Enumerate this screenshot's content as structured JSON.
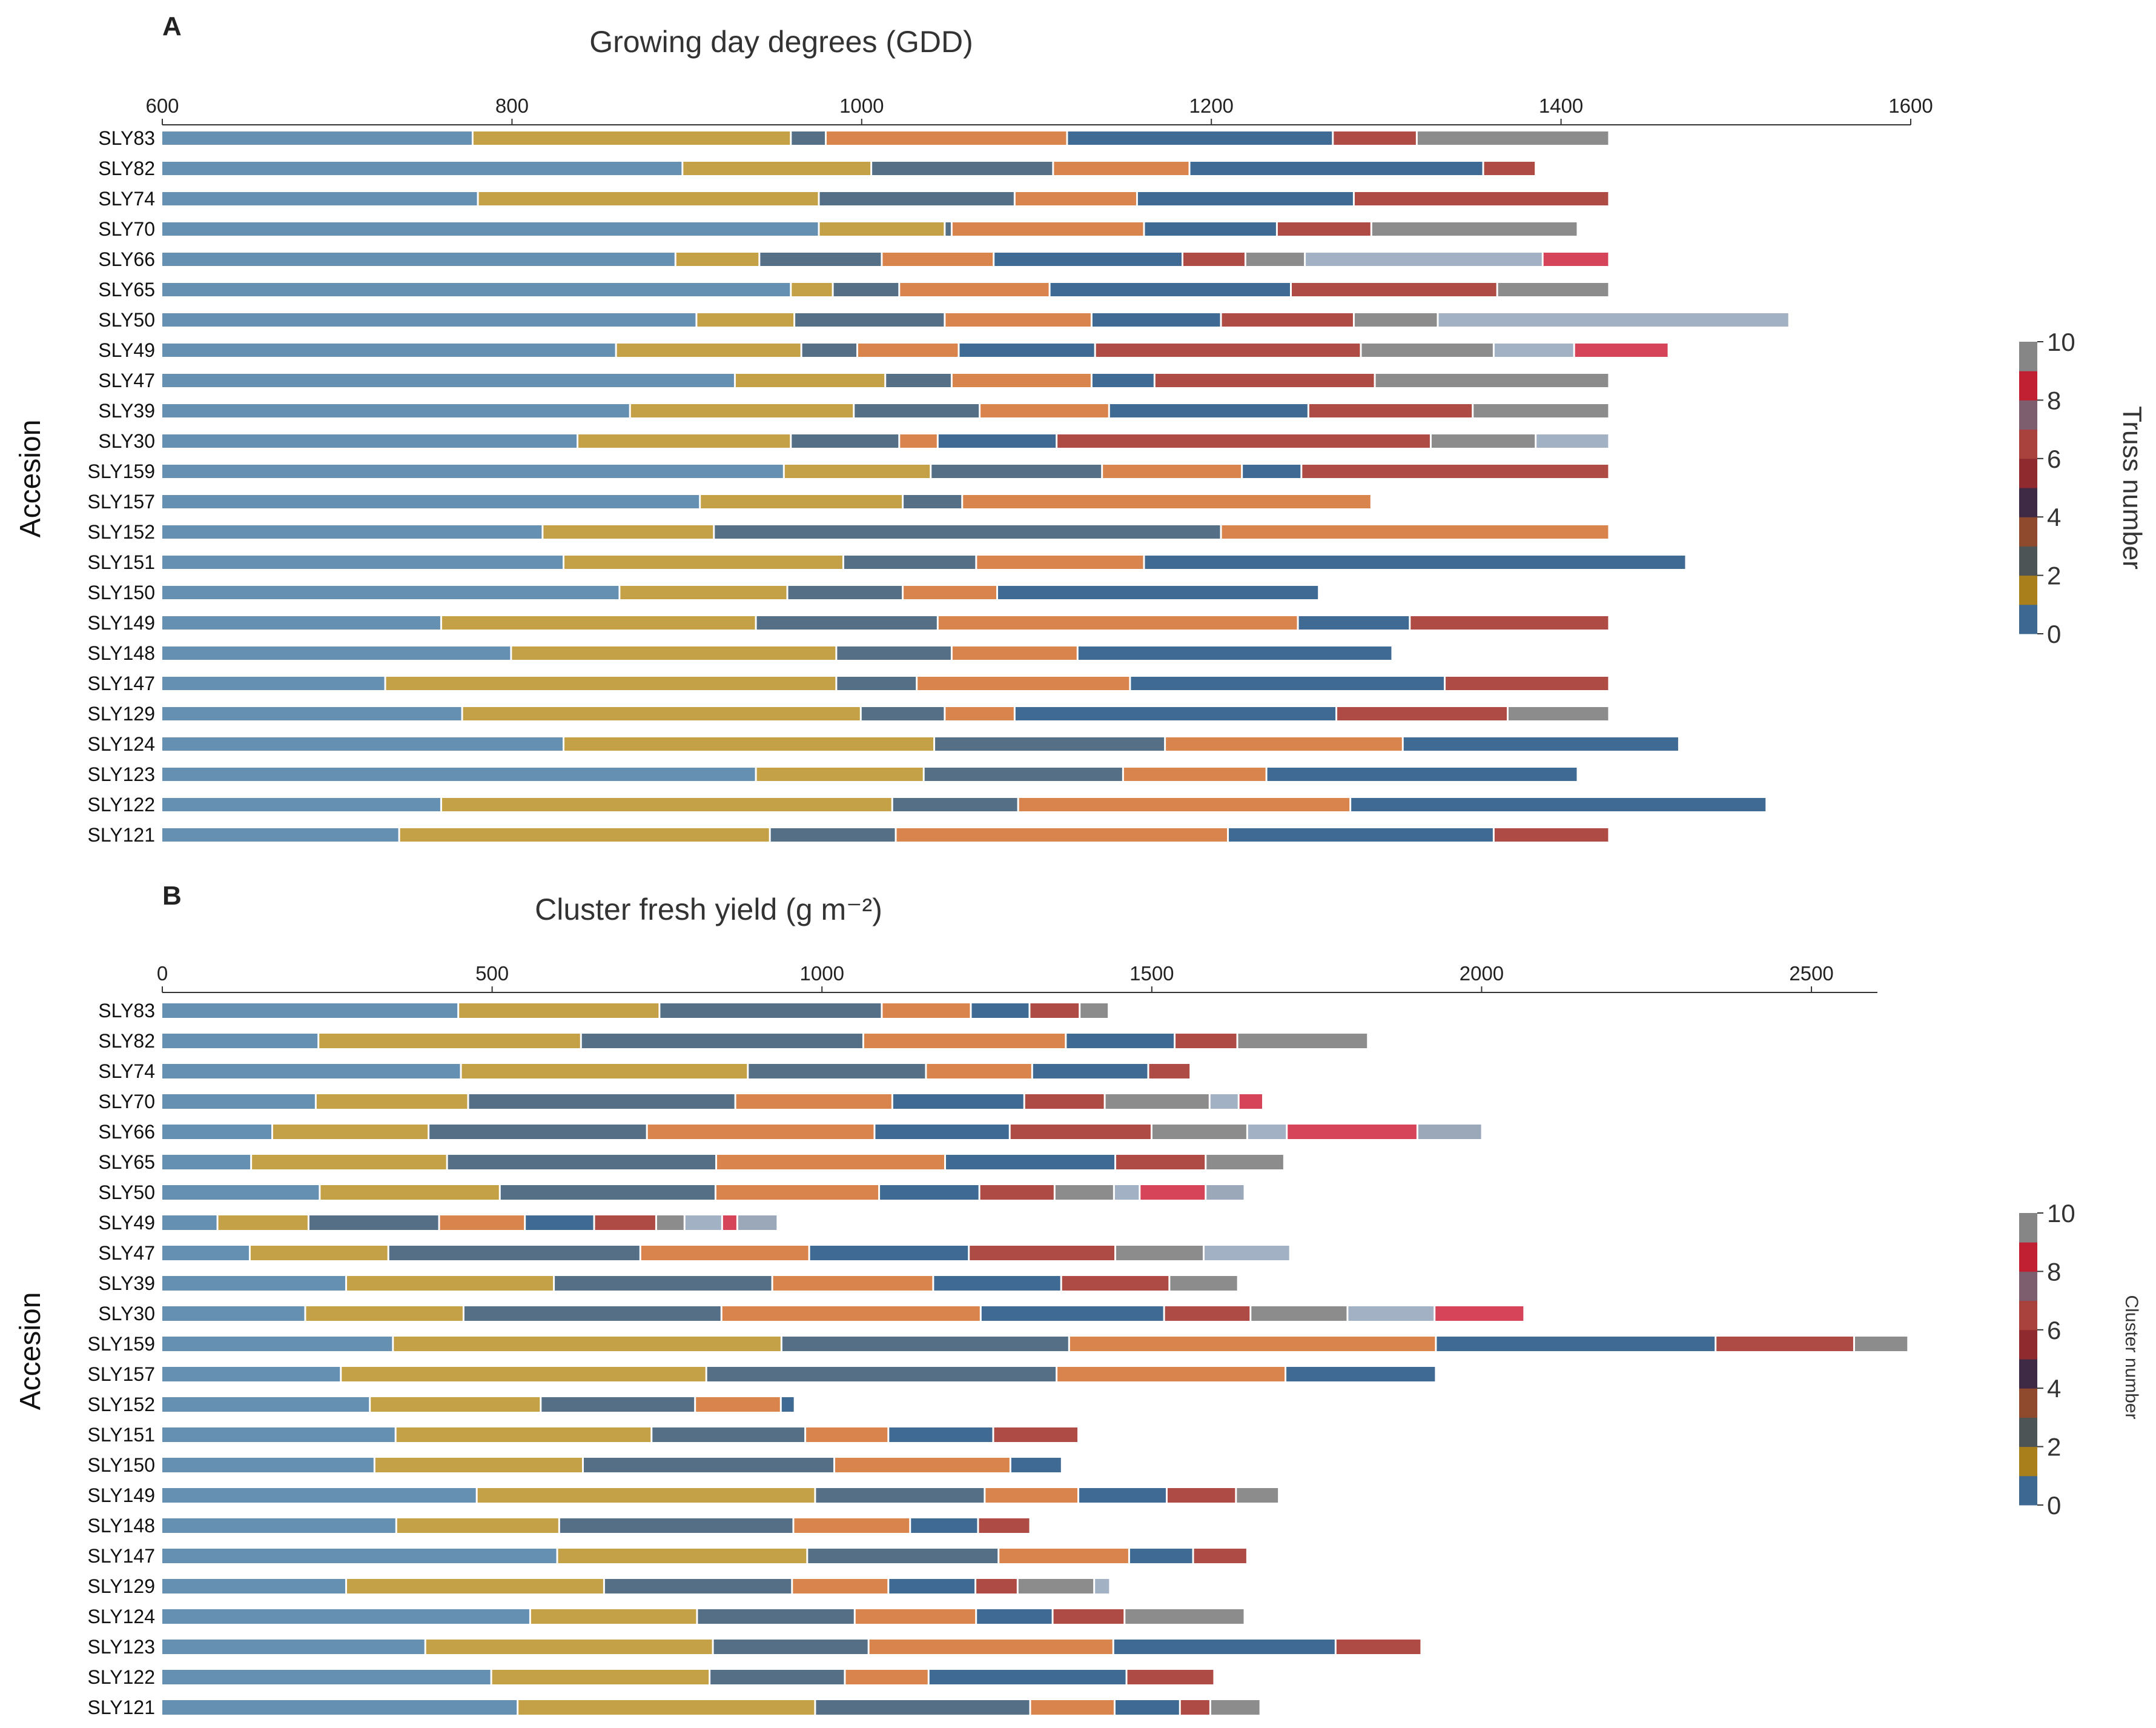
{
  "colors": {
    "bars": [
      "#6690b2",
      "#c4a147",
      "#546f86",
      "#d9844c",
      "#3f6a93",
      "#ad4b44",
      "#8c8c8c",
      "#a2b2c4",
      "#d6445a",
      "#9aa8ba"
    ],
    "colorbar": [
      "#3c6892",
      "#a87f1a",
      "#4d5456",
      "#8f4a2e",
      "#3e2a45",
      "#8f2a2e",
      "#a9423d",
      "#7d5e6e",
      "#c11f32",
      "#868686"
    ]
  },
  "chart_data": [
    {
      "type": "bar",
      "stacked": true,
      "orientation": "horizontal",
      "panel": "A",
      "title": "Growing day degrees (GDD)",
      "xlabel": "Growing day degrees (GDD)",
      "ylabel": "Accesion",
      "xlim": [
        600,
        1600
      ],
      "xticks": [
        600,
        800,
        1000,
        1200,
        1400,
        1600
      ],
      "colorbar": {
        "label": "Truss number",
        "ticks": [
          0,
          2,
          4,
          6,
          8,
          10
        ]
      },
      "categories": [
        "SLY83",
        "SLY82",
        "SLY74",
        "SLY70",
        "SLY66",
        "SLY65",
        "SLY50",
        "SLY49",
        "SLY47",
        "SLY39",
        "SLY30",
        "SLY159",
        "SLY157",
        "SLY152",
        "SLY151",
        "SLY150",
        "SLY149",
        "SLY148",
        "SLY147",
        "SLY129",
        "SLY124",
        "SLY123",
        "SLY122",
        "SLY121"
      ],
      "segments": [
        [
          778,
          960,
          980,
          1118,
          1270,
          1318,
          1428
        ],
        [
          898,
          1006,
          1110,
          1188,
          1356,
          1386
        ],
        [
          781,
          976,
          1088,
          1158,
          1282,
          1428
        ],
        [
          976,
          1048,
          1052,
          1162,
          1238,
          1292,
          1410
        ],
        [
          894,
          942,
          1012,
          1076,
          1184,
          1220,
          1254,
          1390,
          1428
        ],
        [
          960,
          984,
          1022,
          1108,
          1246,
          1364,
          1428
        ],
        [
          906,
          962,
          1048,
          1132,
          1206,
          1282,
          1330,
          1531
        ],
        [
          860,
          966,
          998,
          1056,
          1134,
          1286,
          1362,
          1408,
          1462
        ],
        [
          928,
          1014,
          1052,
          1132,
          1168,
          1294,
          1428
        ],
        [
          868,
          996,
          1068,
          1142,
          1256,
          1350,
          1428
        ],
        [
          838,
          960,
          1022,
          1044,
          1112,
          1326,
          1386,
          1428
        ],
        [
          956,
          1040,
          1138,
          1218,
          1252,
          1428
        ],
        [
          908,
          1024,
          1058,
          1292
        ],
        [
          818,
          916,
          1206,
          1428
        ],
        [
          830,
          990,
          1066,
          1162,
          1472
        ],
        [
          862,
          958,
          1024,
          1078,
          1262
        ],
        [
          760,
          940,
          1044,
          1250,
          1314,
          1428
        ],
        [
          800,
          986,
          1052,
          1124,
          1304
        ],
        [
          728,
          986,
          1032,
          1154,
          1334,
          1428
        ],
        [
          772,
          1000,
          1048,
          1088,
          1272,
          1370,
          1428
        ],
        [
          830,
          1042,
          1174,
          1310,
          1468
        ],
        [
          940,
          1036,
          1150,
          1232,
          1410
        ],
        [
          760,
          1018,
          1090,
          1280,
          1518
        ],
        [
          736,
          948,
          1020,
          1210,
          1362,
          1428
        ]
      ]
    },
    {
      "type": "bar",
      "stacked": true,
      "orientation": "horizontal",
      "panel": "B",
      "title": "Cluster fresh yield (g m⁻²)",
      "xlabel": "Cluster fresh yield (g m⁻²)",
      "ylabel": "Accesion",
      "xlim": [
        0,
        2600
      ],
      "xticks": [
        0,
        500,
        1000,
        1500,
        2000,
        2500
      ],
      "colorbar": {
        "label": "Cluster number",
        "ticks": [
          0,
          2,
          4,
          6,
          8,
          10
        ]
      },
      "categories": [
        "SLY83",
        "SLY82",
        "SLY74",
        "SLY70",
        "SLY66",
        "SLY65",
        "SLY50",
        "SLY49",
        "SLY47",
        "SLY39",
        "SLY30",
        "SLY159",
        "SLY157",
        "SLY152",
        "SLY151",
        "SLY150",
        "SLY149",
        "SLY148",
        "SLY147",
        "SLY129",
        "SLY124",
        "SLY123",
        "SLY122",
        "SLY121"
      ],
      "segments": [
        [
          450,
          755,
          1092,
          1227,
          1316,
          1392,
          1436
        ],
        [
          238,
          636,
          1064,
          1371,
          1536,
          1631,
          1829
        ],
        [
          454,
          889,
          1159,
          1320,
          1496,
          1560
        ],
        [
          234,
          465,
          870,
          1108,
          1308,
          1430,
          1589,
          1633,
          1670
        ],
        [
          168,
          405,
          736,
          1081,
          1286,
          1501,
          1646,
          1706,
          1904,
          2002
        ],
        [
          136,
          433,
          841,
          1188,
          1446,
          1583,
          1702
        ],
        [
          240,
          513,
          840,
          1088,
          1240,
          1354,
          1444,
          1483,
          1583,
          1642
        ],
        [
          85,
          223,
          421,
          551,
          656,
          750,
          793,
          850,
          873,
          934
        ],
        [
          134,
          344,
          726,
          982,
          1224,
          1446,
          1580,
          1711
        ],
        [
          280,
          595,
          926,
          1170,
          1364,
          1528,
          1632
        ],
        [
          218,
          458,
          849,
          1242,
          1520,
          1651,
          1798,
          1930,
          2066
        ],
        [
          351,
          940,
          1376,
          1932,
          2356,
          2566,
          2648
        ],
        [
          272,
          826,
          1357,
          1704,
          1932
        ],
        [
          316,
          575,
          809,
          939,
          960
        ],
        [
          355,
          743,
          976,
          1102,
          1261,
          1390
        ],
        [
          323,
          639,
          1020,
          1287,
          1365
        ],
        [
          478,
          991,
          1248,
          1390,
          1524,
          1629,
          1694
        ],
        [
          356,
          603,
          958,
          1135,
          1238,
          1317
        ],
        [
          600,
          979,
          1269,
          1467,
          1564,
          1646
        ],
        [
          280,
          671,
          956,
          1102,
          1234,
          1298,
          1414,
          1438
        ],
        [
          559,
          812,
          1051,
          1235,
          1351,
          1460,
          1642
        ],
        [
          400,
          836,
          1072,
          1443,
          1780,
          1910
        ],
        [
          500,
          831,
          1036,
          1163,
          1463,
          1596
        ],
        [
          540,
          991,
          1317,
          1445,
          1544,
          1590,
          1666
        ]
      ]
    }
  ]
}
